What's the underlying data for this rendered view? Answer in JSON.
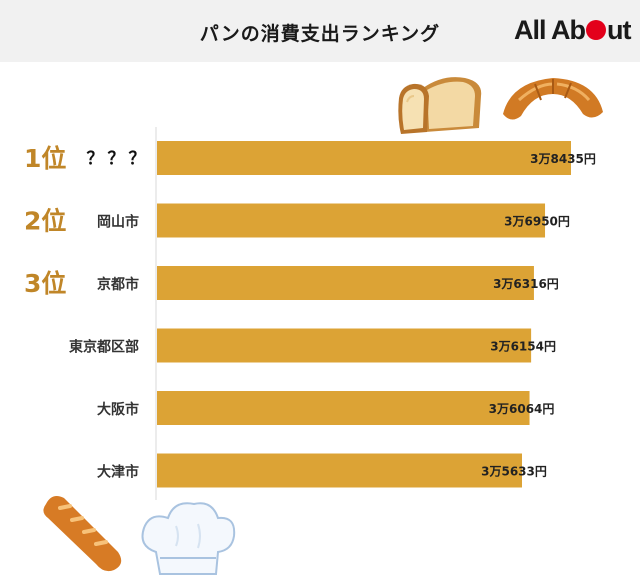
{
  "header": {
    "title": "パンの消費支出ランキング",
    "logo_text_1": "All Ab",
    "logo_text_2": "ut",
    "accent_color": "#e3001b"
  },
  "decorations": [
    "bread-loaf-icon",
    "croissant-icon",
    "baguette-icon",
    "chef-hat-icon"
  ],
  "chart_data": {
    "type": "bar",
    "orientation": "horizontal",
    "title": "パンの消費支出ランキング",
    "categories": [
      "？？？",
      "岡山市",
      "京都市",
      "東京都区部",
      "大阪市",
      "大津市"
    ],
    "ranks": [
      "1位",
      "2位",
      "3位",
      "",
      "",
      ""
    ],
    "values": [
      38435,
      36950,
      36316,
      36154,
      36064,
      35633
    ],
    "value_labels": [
      "3万8435円",
      "3万6950円",
      "3万6316円",
      "3万6154円",
      "3万6064円",
      "3万5633円"
    ],
    "bar_color": "#dca335",
    "rank_color": "#c08628",
    "grid": false
  }
}
